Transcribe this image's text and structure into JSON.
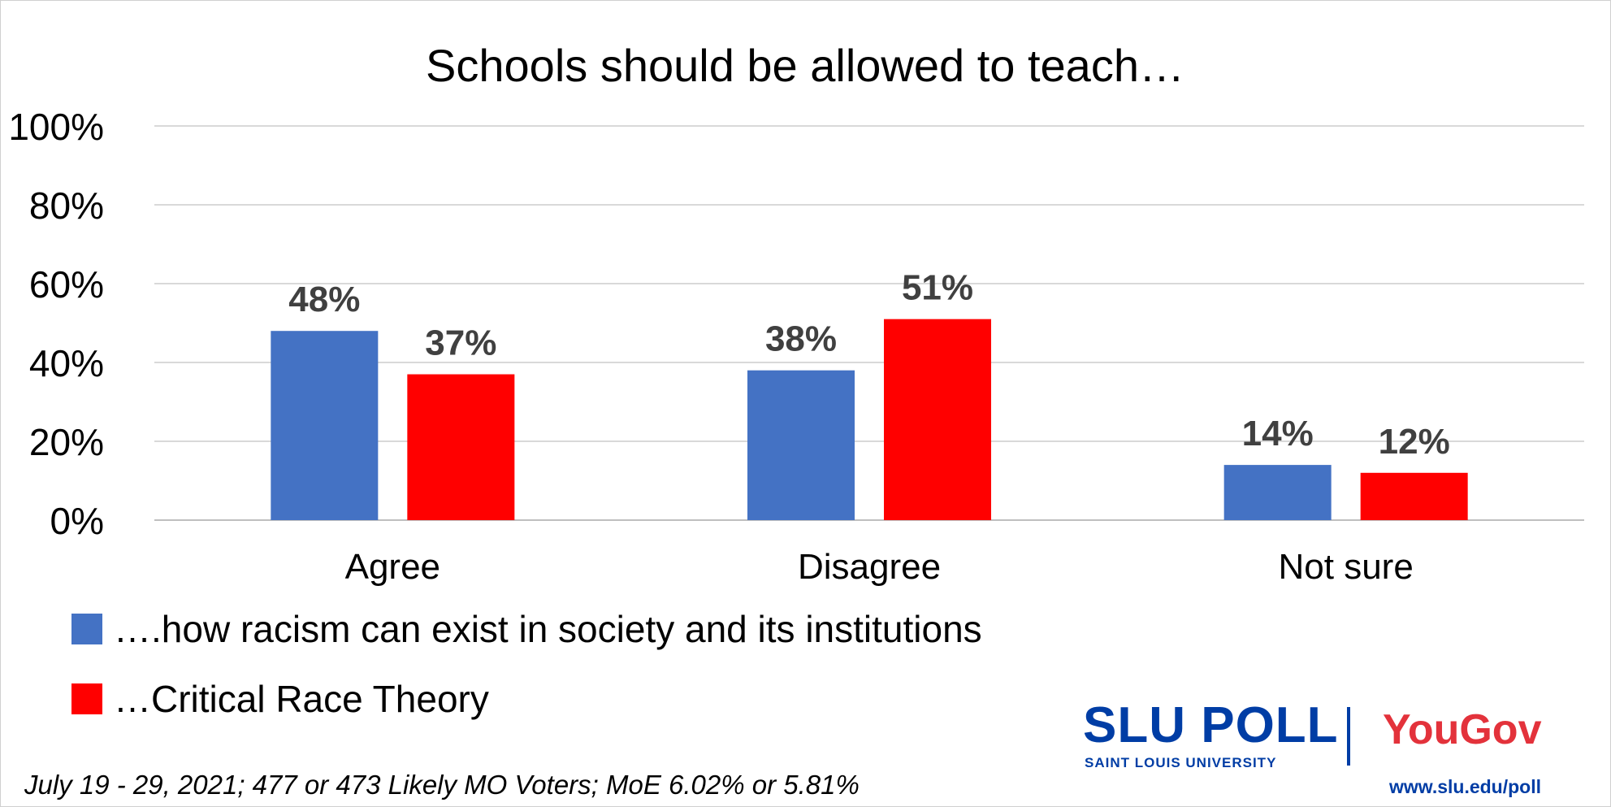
{
  "chart_data": {
    "type": "bar",
    "title": "Schools should be allowed to teach…",
    "categories": [
      "Agree",
      "Disagree",
      "Not sure"
    ],
    "series": [
      {
        "name": "….how racism can exist in society and its institutions",
        "values": [
          48,
          38,
          14
        ],
        "color": "#4472c4"
      },
      {
        "name": "…Critical Race Theory",
        "values": [
          37,
          51,
          12
        ],
        "color": "#ff0000"
      }
    ],
    "data_labels": [
      [
        "48%",
        "38%",
        "14%"
      ],
      [
        "37%",
        "51%",
        "12%"
      ]
    ],
    "ylim": [
      0,
      100
    ],
    "yticks": [
      0,
      20,
      40,
      60,
      80,
      100
    ],
    "ytick_labels": [
      "0%",
      "20%",
      "40%",
      "60%",
      "80%",
      "100%"
    ],
    "xlabel": "",
    "ylabel": "",
    "grid": true,
    "legend_position": "bottom-left"
  },
  "footnote": "July 19 - 29, 2021; 477 or 473 Likely MO Voters; MoE 6.02% or 5.81%",
  "logo": {
    "slu_poll": "SLU POLL",
    "slu_sub": "SAINT LOUIS UNIVERSITY",
    "yougov": "YouGov",
    "url": "www.slu.edu/poll"
  },
  "colors": {
    "series_blue": "#4472c4",
    "series_red": "#ff0000",
    "slu_blue": "#003da5",
    "yougov_red": "#e3323b",
    "gridline": "#d9d9d9",
    "data_label": "#404040"
  }
}
